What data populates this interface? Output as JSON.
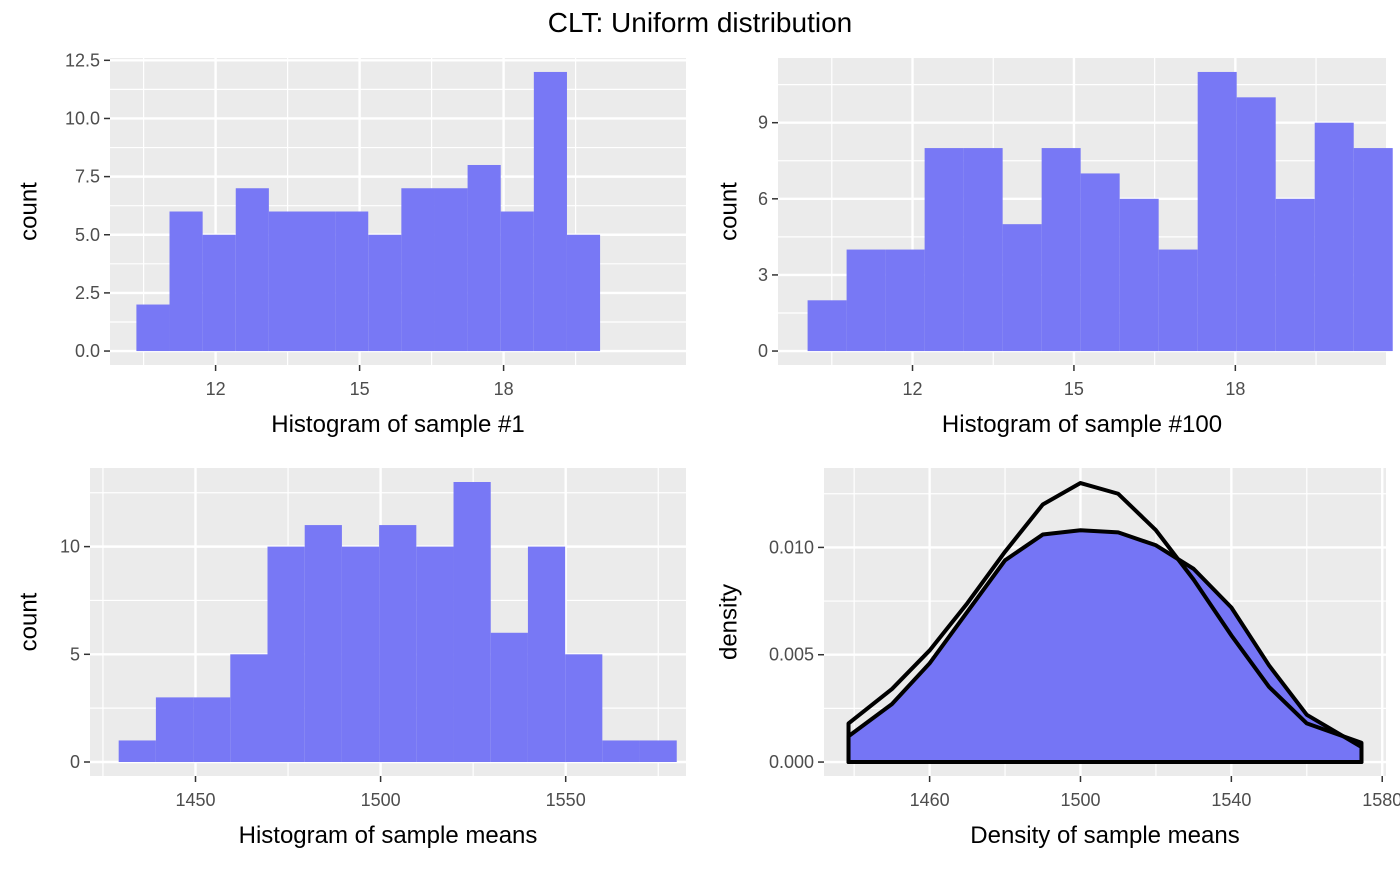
{
  "title": "CLT: Uniform distribution",
  "colors": {
    "fill": "#7575f5",
    "panel": "#ebebeb",
    "grid": "#ffffff",
    "line": "#000000"
  },
  "chart_data": [
    {
      "type": "bar",
      "xlabel": "Histogram of sample #1",
      "ylabel": "count",
      "xlim": [
        9.8,
        21.8
      ],
      "ylim": [
        -0.6,
        12.6
      ],
      "xticks": [
        12,
        15,
        18
      ],
      "yticks": [
        0,
        2.5,
        5,
        7.5,
        10,
        12.5
      ],
      "ytick_labels": [
        "0.0",
        "2.5",
        "5.0",
        "7.5",
        "10.0",
        "12.5"
      ],
      "bin_start": 10.35,
      "bin_width": 0.69,
      "values": [
        2,
        6,
        5,
        7,
        6,
        6,
        6,
        5,
        7,
        7,
        8,
        6,
        12,
        5
      ]
    },
    {
      "type": "bar",
      "xlabel": "Histogram of sample #100",
      "ylabel": "count",
      "xlim": [
        9.5,
        20.8
      ],
      "ylim": [
        -0.55,
        11.55
      ],
      "xticks": [
        12,
        15,
        18
      ],
      "yticks": [
        0,
        3,
        6,
        9
      ],
      "ytick_labels": [
        "0",
        "3",
        "6",
        "9"
      ],
      "bin_start": 10.05,
      "bin_width": 0.725,
      "values": [
        2,
        4,
        4,
        8,
        8,
        5,
        8,
        7,
        6,
        4,
        11,
        10,
        6,
        9,
        8
      ]
    },
    {
      "type": "bar",
      "xlabel": "Histogram of sample means",
      "ylabel": "count",
      "xlim": [
        1421.5,
        1582.5
      ],
      "ylim": [
        -0.65,
        13.65
      ],
      "xticks": [
        1450,
        1500,
        1550
      ],
      "yticks": [
        0,
        5,
        10
      ],
      "ytick_labels": [
        "0",
        "5",
        "10"
      ],
      "bin_start": 1429.25,
      "bin_width": 10.05,
      "values": [
        1,
        3,
        3,
        5,
        10,
        11,
        10,
        11,
        10,
        13,
        6,
        10,
        5,
        1,
        1
      ]
    },
    {
      "type": "area",
      "xlabel": "Density of sample means",
      "ylabel": "density",
      "xlim": [
        1432,
        1581
      ],
      "ylim": [
        -0.00065,
        0.0137
      ],
      "xticks": [
        1460,
        1500,
        1540,
        1580
      ],
      "yticks": [
        0,
        0.005,
        0.01
      ],
      "ytick_labels": [
        "0.000",
        "0.005",
        "0.010"
      ],
      "series": [
        {
          "filled": true,
          "x": [
            1438.5,
            1450,
            1460,
            1470,
            1480,
            1490,
            1500,
            1510,
            1520,
            1530,
            1540,
            1550,
            1560,
            1574.5
          ],
          "y": [
            0.0012,
            0.0027,
            0.0046,
            0.007,
            0.0094,
            0.0106,
            0.0108,
            0.0107,
            0.0101,
            0.009,
            0.0072,
            0.0045,
            0.0022,
            0.0007
          ]
        },
        {
          "filled": false,
          "x": [
            1438.5,
            1450,
            1460,
            1470,
            1480,
            1490,
            1500,
            1510,
            1520,
            1530,
            1540,
            1550,
            1560,
            1574.5
          ],
          "y": [
            0.0018,
            0.0034,
            0.0052,
            0.0074,
            0.0098,
            0.012,
            0.013,
            0.0125,
            0.0108,
            0.0085,
            0.0059,
            0.0035,
            0.0018,
            0.0009
          ]
        }
      ]
    }
  ]
}
